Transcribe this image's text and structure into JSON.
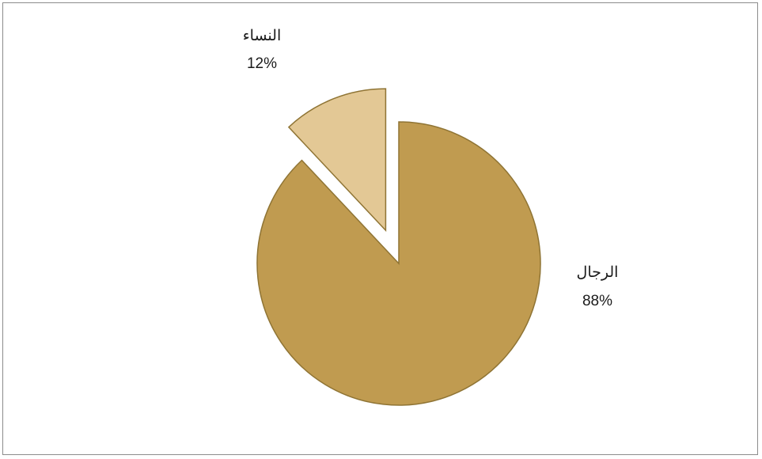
{
  "chart_data": {
    "type": "pie",
    "title": "",
    "categories": [
      "الرجال",
      "النساء"
    ],
    "values": [
      88,
      12
    ],
    "value_labels": [
      "88%",
      "12%"
    ],
    "colors": [
      "#c09b50",
      "#e3c895"
    ],
    "edge_color": "#8f7434",
    "exploded": [
      "النساء"
    ],
    "start": "12 o'clock",
    "direction": "clockwise",
    "legend": "none"
  }
}
